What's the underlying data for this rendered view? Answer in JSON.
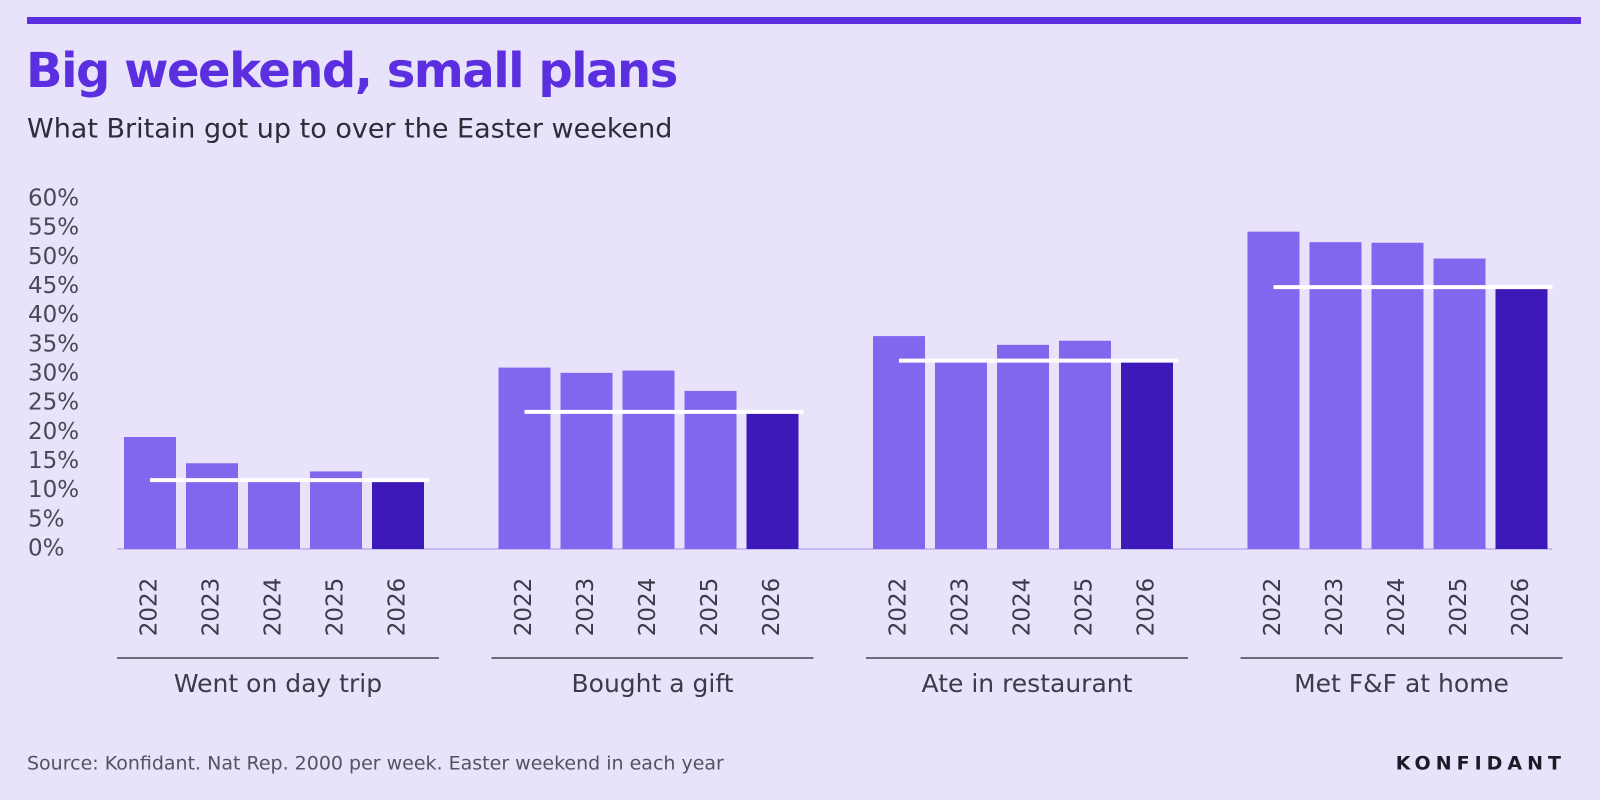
{
  "chart_data": {
    "type": "grouped-bar",
    "title": "Big weekend, small plans",
    "subtitle": "What Britain got up to over the Easter weekend",
    "source": "Source: Konfidant. Nat Rep. 2000 per week. Easter weekend in each year",
    "brand": "KONFIDANT",
    "categories": [
      "Went on day trip",
      "Bought a gift",
      "Ate in restaurant",
      "Met F&F at home"
    ],
    "years": [
      "2022",
      "2023",
      "2024",
      "2025",
      "2026"
    ],
    "values": [
      [
        19.2,
        14.7,
        11.8,
        13.3,
        11.8
      ],
      [
        31.1,
        30.2,
        30.6,
        27.1,
        23.5
      ],
      [
        36.5,
        32.3,
        35,
        35.7,
        32.3
      ],
      [
        54.4,
        52.6,
        52.5,
        49.8,
        44.9
      ]
    ],
    "color": "#8366ee",
    "highlight_color": "#3c19b8",
    "reference_color": "#ffffff",
    "top_rule_color": "#5b2fe0",
    "ylim": [
      0,
      60
    ],
    "yticks": [
      {
        "value": 0,
        "label": "0%"
      },
      {
        "value": 5,
        "label": "5%"
      },
      {
        "value": 10,
        "label": "10%"
      },
      {
        "value": 15,
        "label": "15%"
      },
      {
        "value": 20,
        "label": "20%"
      },
      {
        "value": 25,
        "label": "25%"
      },
      {
        "value": 30,
        "label": "30%"
      },
      {
        "value": 35,
        "label": "35%"
      },
      {
        "value": 40,
        "label": "40%"
      },
      {
        "value": 45,
        "label": "45%"
      },
      {
        "value": 50,
        "label": "50%"
      },
      {
        "value": 55,
        "label": "55%"
      },
      {
        "value": 60,
        "label": "60%"
      }
    ]
  }
}
